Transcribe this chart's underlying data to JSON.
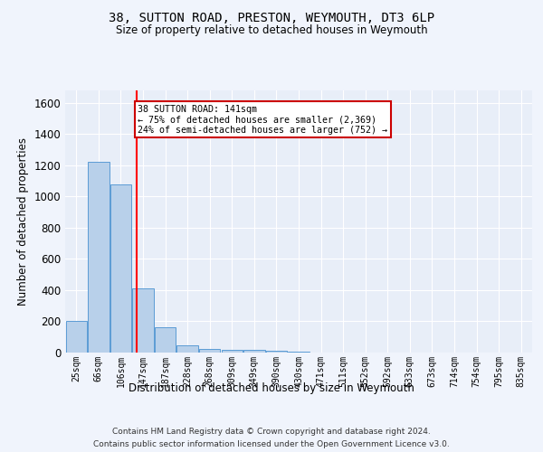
{
  "title": "38, SUTTON ROAD, PRESTON, WEYMOUTH, DT3 6LP",
  "subtitle": "Size of property relative to detached houses in Weymouth",
  "xlabel": "Distribution of detached houses by size in Weymouth",
  "ylabel": "Number of detached properties",
  "bar_labels": [
    "25sqm",
    "66sqm",
    "106sqm",
    "147sqm",
    "187sqm",
    "228sqm",
    "268sqm",
    "309sqm",
    "349sqm",
    "390sqm",
    "430sqm",
    "471sqm",
    "511sqm",
    "552sqm",
    "592sqm",
    "633sqm",
    "673sqm",
    "714sqm",
    "754sqm",
    "795sqm",
    "835sqm"
  ],
  "bar_values": [
    205,
    1220,
    1075,
    410,
    165,
    45,
    25,
    20,
    15,
    10,
    5,
    0,
    0,
    0,
    0,
    0,
    0,
    0,
    0,
    0,
    0
  ],
  "bar_color": "#b8d0ea",
  "bar_edge_color": "#5b9bd5",
  "background_color": "#e8eef8",
  "grid_color": "#ffffff",
  "fig_background": "#f0f4fc",
  "red_line_x": 2.72,
  "annotation_text": "38 SUTTON ROAD: 141sqm\n← 75% of detached houses are smaller (2,369)\n24% of semi-detached houses are larger (752) →",
  "annotation_box_color": "#ffffff",
  "annotation_box_edge": "#cc0000",
  "ylim": [
    0,
    1680
  ],
  "yticks": [
    0,
    200,
    400,
    600,
    800,
    1000,
    1200,
    1400,
    1600
  ],
  "footer_line1": "Contains HM Land Registry data © Crown copyright and database right 2024.",
  "footer_line2": "Contains public sector information licensed under the Open Government Licence v3.0."
}
